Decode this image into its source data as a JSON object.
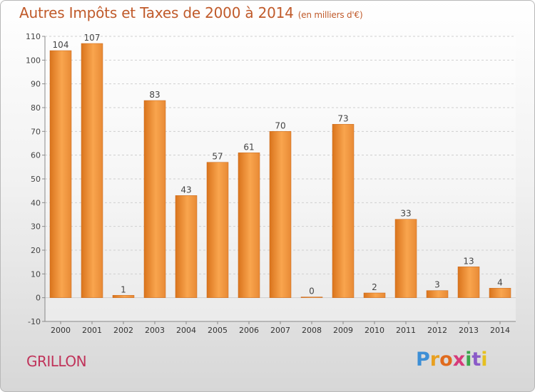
{
  "title": "Autres Impôts et Taxes de 2000 à 2014",
  "title_unit": "(en milliers d'€)",
  "commune": "GRILLON",
  "logo": [
    "P",
    "r",
    "o",
    "x",
    "i",
    "t",
    "i"
  ],
  "colors": {
    "bar_light": "#f9a54e",
    "bar_dark": "#d9741c",
    "title": "#c05a2a",
    "commune": "#c0335a"
  },
  "chart_data": {
    "type": "bar",
    "title": "Autres Impôts et Taxes de 2000 à 2014",
    "ylabel": "",
    "xlabel": "",
    "categories": [
      "2000",
      "2001",
      "2002",
      "2003",
      "2004",
      "2005",
      "2006",
      "2007",
      "2008",
      "2009",
      "2010",
      "2011",
      "2012",
      "2013",
      "2014"
    ],
    "values": [
      104,
      107,
      1,
      83,
      43,
      57,
      61,
      70,
      0,
      73,
      2,
      33,
      3,
      13,
      4
    ],
    "ylim": [
      -10,
      110
    ],
    "yticks": [
      -10,
      0,
      10,
      20,
      30,
      40,
      50,
      60,
      70,
      80,
      90,
      100,
      110
    ],
    "grid": true,
    "legend": "none"
  }
}
